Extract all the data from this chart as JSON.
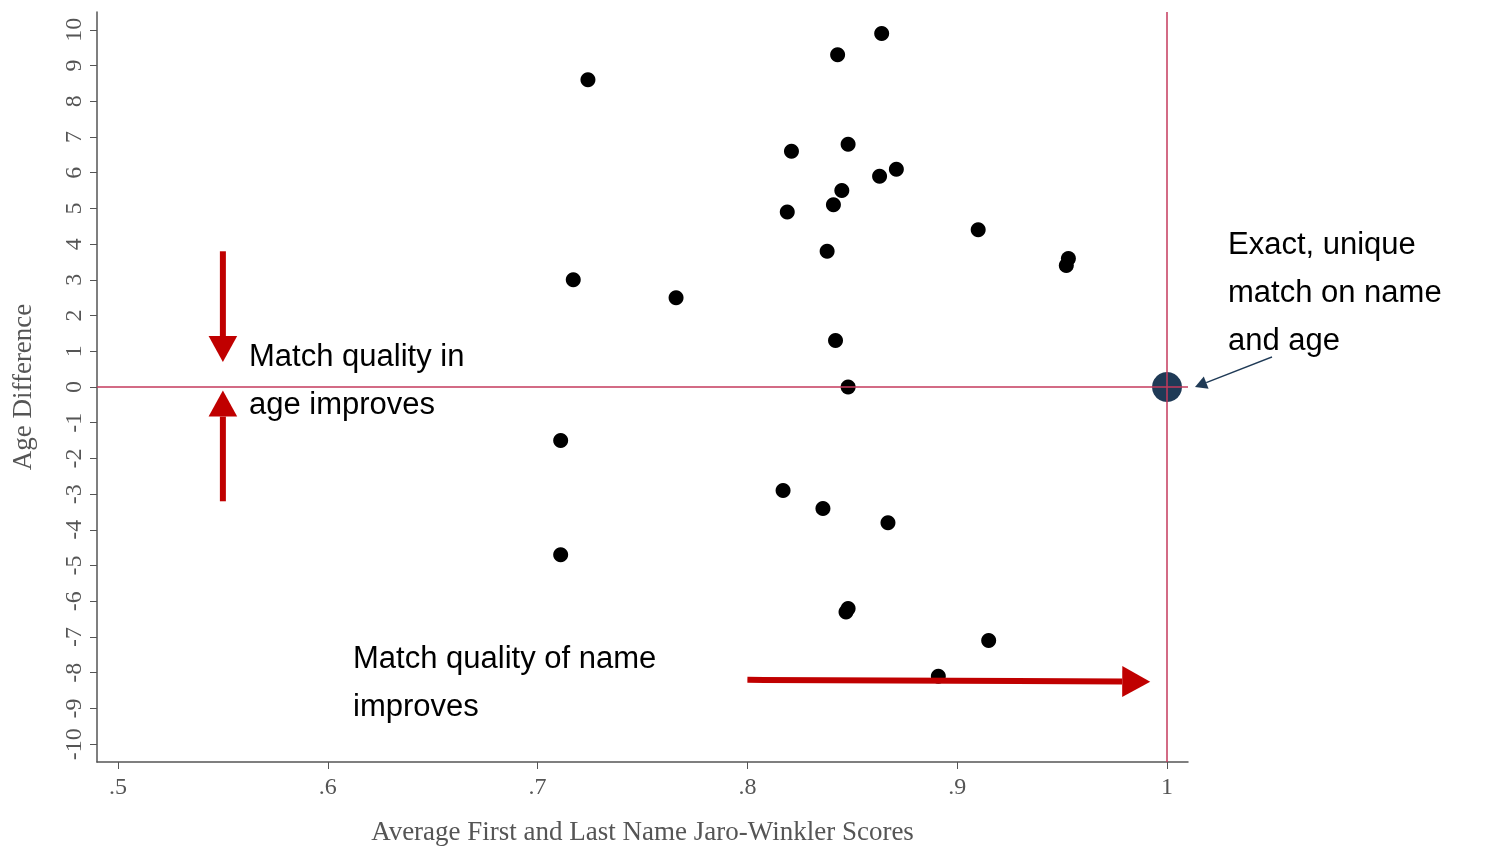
{
  "chart_data": {
    "type": "scatter",
    "xlabel": "Average First and Last Name Jaro-Winkler Scores",
    "ylabel": "Age Difference",
    "series": [
      {
        "color": "#000000",
        "x": [
          0.864,
          0.843,
          0.724,
          0.848,
          0.821,
          0.871,
          0.863,
          0.845,
          0.841,
          0.819,
          0.91,
          0.953,
          0.952,
          0.838,
          0.717,
          0.766,
          0.842,
          0.848,
          0.711,
          0.817,
          0.836,
          0.867,
          0.711,
          0.848,
          0.847,
          0.915,
          0.891
        ],
        "values": [
          9.9,
          9.3,
          8.6,
          6.8,
          6.6,
          6.1,
          5.9,
          5.5,
          5.1,
          4.9,
          4.4,
          3.6,
          3.4,
          3.8,
          3.0,
          2.5,
          1.3,
          0,
          -1.5,
          -2.9,
          -3.4,
          -3.8,
          -4.7,
          -6.2,
          -6.3,
          -7.1,
          -8.1
        ]
      },
      {
        "color": "#1f3a56",
        "x": [
          1.0
        ],
        "values": [
          0
        ]
      }
    ],
    "xlim": [
      0.49,
      1.01
    ],
    "xticks": [
      {
        "value": 0.5,
        "label": ".5"
      },
      {
        "value": 0.6,
        "label": ".6"
      },
      {
        "value": 0.7,
        "label": ".7"
      },
      {
        "value": 0.8,
        "label": ".8"
      },
      {
        "value": 0.9,
        "label": ".9"
      },
      1
    ],
    "ylim": [
      -10.5,
      10.5
    ],
    "yticks": [
      -10,
      -9,
      -8,
      -7,
      -6,
      -5,
      -4,
      -3,
      -2,
      -1,
      0,
      1,
      2,
      3,
      4,
      5,
      6,
      7,
      8,
      9,
      10
    ],
    "ref_lines": [
      {
        "axis": "x",
        "value": 1,
        "color": "#c43a5c"
      },
      {
        "axis": "y",
        "value": 0,
        "color": "#c43a5c"
      }
    ],
    "annotations": [
      "Match quality in age improves",
      "Match quality of name improves",
      {
        "text": "Exact, unique match on name and age",
        "x": 1,
        "y": 0
      }
    ],
    "grid": false,
    "marker": "circle"
  }
}
